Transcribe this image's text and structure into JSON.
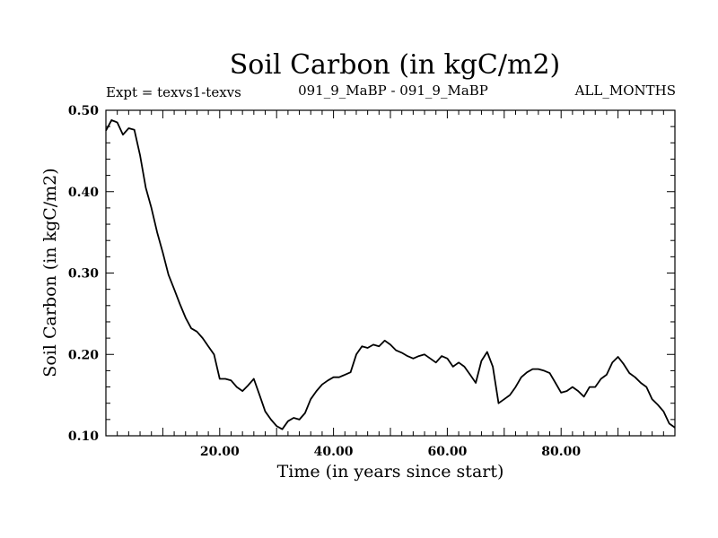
{
  "chart_data": {
    "type": "line",
    "title": "Soil Carbon (in kgC/m2)",
    "subtitle_left": "Expt = texvs1-texvs",
    "subtitle_center": "091_9_MaBP - 091_9_MaBP",
    "subtitle_right": "ALL_MONTHS",
    "xlabel": "Time (in years since start)",
    "ylabel": "Soil Carbon (in kgC/m2)",
    "xlim": [
      0,
      100
    ],
    "ylim": [
      0.1,
      0.5
    ],
    "x_ticks": [
      20,
      40,
      60,
      80
    ],
    "x_tick_labels": [
      "20.00",
      "40.00",
      "60.00",
      "80.00"
    ],
    "y_ticks": [
      0.1,
      0.2,
      0.3,
      0.4,
      0.5
    ],
    "y_tick_labels": [
      "0.10",
      "0.20",
      "0.30",
      "0.40",
      "0.50"
    ],
    "series": [
      {
        "name": "Soil Carbon",
        "x": [
          0,
          1,
          2,
          3,
          4,
          5,
          6,
          7,
          8,
          9,
          10,
          11,
          12,
          13,
          14,
          15,
          16,
          17,
          18,
          19,
          20,
          21,
          22,
          23,
          24,
          25,
          26,
          27,
          28,
          29,
          30,
          31,
          32,
          33,
          34,
          35,
          36,
          37,
          38,
          39,
          40,
          41,
          42,
          43,
          44,
          45,
          46,
          47,
          48,
          49,
          50,
          51,
          52,
          53,
          54,
          55,
          56,
          57,
          58,
          59,
          60,
          61,
          62,
          63,
          64,
          65,
          66,
          67,
          68,
          69,
          70,
          71,
          72,
          73,
          74,
          75,
          76,
          77,
          78,
          79,
          80,
          81,
          82,
          83,
          84,
          85,
          86,
          87,
          88,
          89,
          90,
          91,
          92,
          93,
          94,
          95,
          96,
          97,
          98,
          99,
          100
        ],
        "y": [
          0.475,
          0.488,
          0.485,
          0.47,
          0.478,
          0.476,
          0.445,
          0.405,
          0.38,
          0.35,
          0.325,
          0.298,
          0.28,
          0.262,
          0.245,
          0.232,
          0.228,
          0.22,
          0.21,
          0.2,
          0.17,
          0.17,
          0.168,
          0.16,
          0.155,
          0.162,
          0.17,
          0.15,
          0.13,
          0.12,
          0.112,
          0.108,
          0.118,
          0.122,
          0.12,
          0.128,
          0.145,
          0.155,
          0.163,
          0.168,
          0.172,
          0.172,
          0.175,
          0.178,
          0.2,
          0.21,
          0.208,
          0.212,
          0.21,
          0.217,
          0.212,
          0.205,
          0.202,
          0.198,
          0.195,
          0.198,
          0.2,
          0.195,
          0.19,
          0.198,
          0.195,
          0.185,
          0.19,
          0.185,
          0.175,
          0.165,
          0.192,
          0.203,
          0.185,
          0.14,
          0.145,
          0.15,
          0.16,
          0.172,
          0.178,
          0.182,
          0.182,
          0.18,
          0.177,
          0.165,
          0.153,
          0.155,
          0.16,
          0.155,
          0.148,
          0.16,
          0.16,
          0.17,
          0.175,
          0.19,
          0.197,
          0.188,
          0.177,
          0.172,
          0.165,
          0.16,
          0.145,
          0.138,
          0.13,
          0.115,
          0.11
        ]
      }
    ]
  }
}
